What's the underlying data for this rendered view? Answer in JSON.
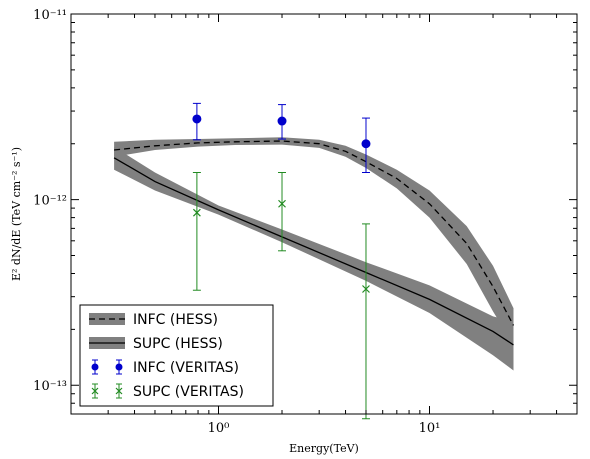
{
  "chart_data": {
    "type": "scatter",
    "xlabel": "Energy(TeV)",
    "ylabel": "E² dN/dE (TeV cm⁻² s⁻¹)",
    "x_scale": "log",
    "y_scale": "log",
    "xlim": [
      0.2,
      50
    ],
    "ylim": [
      7e-14,
      1e-11
    ],
    "x_ticks": [
      {
        "value": 1,
        "label": "10⁰"
      },
      {
        "value": 10,
        "label": "10¹"
      }
    ],
    "y_ticks": [
      {
        "value": 1e-13,
        "label": "10⁻¹³"
      },
      {
        "value": 1e-12,
        "label": "10⁻¹²"
      },
      {
        "value": 1e-11,
        "label": "10⁻¹¹"
      }
    ],
    "grid": false,
    "legend_position": "lower-left",
    "series": [
      {
        "name": "INFC (HESS)",
        "style": "dashed-line-with-band",
        "color": "#000000",
        "band_color": "#808080",
        "x": [
          0.32,
          0.5,
          0.8,
          1.2,
          2,
          3,
          4,
          5,
          7,
          10,
          15,
          20,
          25
        ],
        "y": [
          1.85e-12,
          1.95e-12,
          2.02e-12,
          2.05e-12,
          2.07e-12,
          2e-12,
          1.82e-12,
          1.6e-12,
          1.3e-12,
          9.5e-13,
          5.8e-13,
          3.4e-13,
          2.1e-13
        ],
        "band_low": [
          1.7e-12,
          1.85e-12,
          1.93e-12,
          1.97e-12,
          1.98e-12,
          1.9e-12,
          1.7e-12,
          1.48e-12,
          1.15e-12,
          8e-13,
          4.5e-13,
          2.5e-13,
          1.65e-13
        ],
        "band_high": [
          2.05e-12,
          2.1e-12,
          2.12e-12,
          2.14e-12,
          2.17e-12,
          2.1e-12,
          1.95e-12,
          1.75e-12,
          1.45e-12,
          1.12e-12,
          7.2e-13,
          4.4e-13,
          2.6e-13
        ]
      },
      {
        "name": "SUPC (HESS)",
        "style": "solid-line-with-band",
        "color": "#000000",
        "band_color": "#808080",
        "x": [
          0.32,
          0.5,
          1,
          2,
          5,
          10,
          20,
          25
        ],
        "y": [
          1.68e-12,
          1.25e-12,
          8.8e-13,
          6.3e-13,
          4.05e-13,
          2.9e-13,
          1.95e-13,
          1.65e-13
        ],
        "band_low": [
          1.45e-12,
          1.12e-12,
          8.3e-13,
          5.9e-13,
          3.65e-13,
          2.45e-13,
          1.45e-13,
          1.2e-13
        ],
        "band_high": [
          1.92e-12,
          1.4e-12,
          9.3e-13,
          6.9e-13,
          4.6e-13,
          3.45e-13,
          2.35e-13,
          2.2e-13
        ]
      },
      {
        "name": "INFC (VERITAS)",
        "style": "points-circle-errorbar",
        "color": "#0000cc",
        "x": [
          0.79,
          2.0,
          5.0
        ],
        "y": [
          2.72e-12,
          2.65e-12,
          2e-12
        ],
        "y_low": [
          2.1e-12,
          2.12e-12,
          1.4e-12
        ],
        "y_high": [
          3.3e-12,
          3.25e-12,
          2.75e-12
        ]
      },
      {
        "name": "SUPC (VERITAS)",
        "style": "points-x-errorbar",
        "color": "#228b22",
        "x": [
          0.79,
          2.0,
          5.0
        ],
        "y": [
          8.5e-13,
          9.5e-13,
          3.3e-13
        ],
        "y_low": [
          3.25e-13,
          5.3e-13,
          6.6e-14
        ],
        "y_high": [
          1.4e-12,
          1.4e-12,
          7.4e-13
        ]
      }
    ]
  }
}
